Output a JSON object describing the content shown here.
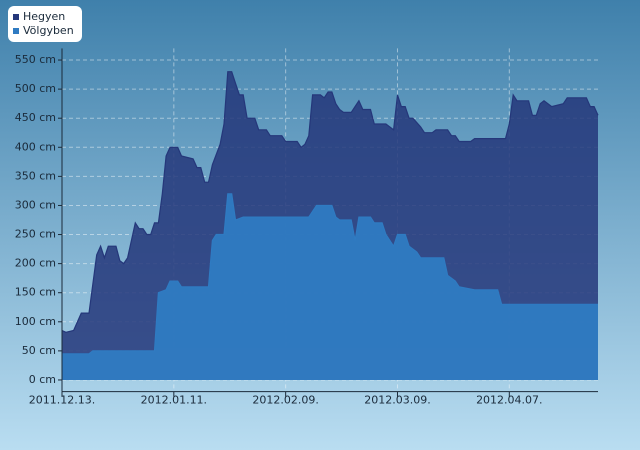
{
  "chart_data": {
    "type": "area",
    "ylim": [
      -20,
      570
    ],
    "yticks": [
      {
        "value": 0,
        "label": "0 cm"
      },
      {
        "value": 50,
        "label": "50 cm"
      },
      {
        "value": 100,
        "label": "100 cm"
      },
      {
        "value": 150,
        "label": "150 cm"
      },
      {
        "value": 200,
        "label": "200 cm"
      },
      {
        "value": 250,
        "label": "250 cm"
      },
      {
        "value": 300,
        "label": "300 cm"
      },
      {
        "value": 350,
        "label": "350 cm"
      },
      {
        "value": 400,
        "label": "400 cm"
      },
      {
        "value": 450,
        "label": "450 cm"
      },
      {
        "value": 500,
        "label": "500 cm"
      },
      {
        "value": 550,
        "label": "550 cm"
      }
    ],
    "xlim": [
      "2011.12.13.",
      "2012.04.30."
    ],
    "xticks": [
      "2011.12.13.",
      "2012.01.11.",
      "2012.02.09.",
      "2012.03.09.",
      "2012.04.07."
    ],
    "grid": true,
    "legend": "top-left",
    "series": [
      {
        "name": "Hegyen",
        "color": "#25377a",
        "x": [
          "2011.12.13.",
          "2011.12.14.",
          "2011.12.16.",
          "2011.12.18.",
          "2011.12.20.",
          "2011.12.22.",
          "2011.12.23.",
          "2011.12.24.",
          "2011.12.25.",
          "2011.12.27.",
          "2011.12.28.",
          "2011.12.29.",
          "2011.12.30.",
          "2012.01.01.",
          "2012.01.02.",
          "2012.01.03.",
          "2012.01.04.",
          "2012.01.05.",
          "2012.01.06.",
          "2012.01.07.",
          "2012.01.08.",
          "2012.01.09.",
          "2012.01.10.",
          "2012.01.12.",
          "2012.01.13.",
          "2012.01.16.",
          "2012.01.17.",
          "2012.01.18.",
          "2012.01.19.",
          "2012.01.20.",
          "2012.01.21.",
          "2012.01.23.",
          "2012.01.24.",
          "2012.01.25.",
          "2012.01.26.",
          "2012.01.27.",
          "2012.01.28.",
          "2012.01.29.",
          "2012.01.30.",
          "2012.02.01.",
          "2012.02.02.",
          "2012.02.04.",
          "2012.02.05.",
          "2012.02.08.",
          "2012.02.09.",
          "2012.02.12.",
          "2012.02.13.",
          "2012.02.14.",
          "2012.02.15.",
          "2012.02.16.",
          "2012.02.18.",
          "2012.02.19.",
          "2012.02.20.",
          "2012.02.21.",
          "2012.02.22.",
          "2012.02.23.",
          "2012.02.24.",
          "2012.02.26.",
          "2012.02.28.",
          "2012.02.29.",
          "2012.03.02.",
          "2012.03.03.",
          "2012.03.06.",
          "2012.03.08.",
          "2012.03.09.",
          "2012.03.10.",
          "2012.03.11.",
          "2012.03.12.",
          "2012.03.13.",
          "2012.03.15.",
          "2012.03.16.",
          "2012.03.18.",
          "2012.03.19.",
          "2012.03.22.",
          "2012.03.23.",
          "2012.03.24.",
          "2012.03.25.",
          "2012.03.28.",
          "2012.03.29.",
          "2012.04.06.",
          "2012.04.07.",
          "2012.04.08.",
          "2012.04.09.",
          "2012.04.12.",
          "2012.04.13.",
          "2012.04.14.",
          "2012.04.15.",
          "2012.04.16.",
          "2012.04.18.",
          "2012.04.21.",
          "2012.04.22.",
          "2012.04.27.",
          "2012.04.28.",
          "2012.04.29.",
          "2012.04.30."
        ],
        "values": [
          85,
          82,
          85,
          115,
          115,
          215,
          230,
          210,
          230,
          230,
          205,
          200,
          210,
          270,
          260,
          260,
          250,
          250,
          270,
          270,
          320,
          385,
          400,
          400,
          385,
          380,
          365,
          365,
          340,
          340,
          370,
          405,
          440,
          530,
          530,
          510,
          490,
          490,
          450,
          450,
          430,
          430,
          420,
          420,
          410,
          410,
          400,
          405,
          420,
          490,
          490,
          485,
          495,
          495,
          475,
          465,
          460,
          460,
          480,
          465,
          465,
          440,
          440,
          430,
          490,
          470,
          470,
          450,
          450,
          435,
          425,
          425,
          430,
          430,
          420,
          420,
          410,
          410,
          415,
          415,
          440,
          490,
          480,
          480,
          455,
          455,
          475,
          480,
          470,
          475,
          485,
          485,
          470,
          470,
          455
        ]
      },
      {
        "name": "Völgyben",
        "color": "#2f7bc2",
        "x": [
          "2011.12.13.",
          "2011.12.20.",
          "2011.12.21.",
          "2012.01.06.",
          "2012.01.07.",
          "2012.01.09.",
          "2012.01.10.",
          "2012.01.12.",
          "2012.01.13.",
          "2012.01.20.",
          "2012.01.21.",
          "2012.01.22.",
          "2012.01.24.",
          "2012.01.25.",
          "2012.01.26.",
          "2012.01.27.",
          "2012.01.29.",
          "2012.02.15.",
          "2012.02.16.",
          "2012.02.17.",
          "2012.02.21.",
          "2012.02.22.",
          "2012.02.23.",
          "2012.02.26.",
          "2012.02.27.",
          "2012.02.28.",
          "2012.03.02.",
          "2012.03.03.",
          "2012.03.05.",
          "2012.03.06.",
          "2012.03.08.",
          "2012.03.09.",
          "2012.03.11.",
          "2012.03.12.",
          "2012.03.14.",
          "2012.03.15.",
          "2012.03.21.",
          "2012.03.22.",
          "2012.03.24.",
          "2012.03.25.",
          "2012.03.29.",
          "2012.04.04.",
          "2012.04.05.",
          "2012.04.30."
        ],
        "values": [
          45,
          45,
          50,
          50,
          150,
          155,
          170,
          170,
          160,
          160,
          240,
          250,
          250,
          320,
          320,
          275,
          280,
          280,
          290,
          300,
          300,
          280,
          275,
          275,
          240,
          280,
          280,
          270,
          270,
          250,
          230,
          250,
          250,
          230,
          220,
          210,
          210,
          180,
          170,
          160,
          155,
          155,
          130,
          130
        ]
      }
    ]
  }
}
